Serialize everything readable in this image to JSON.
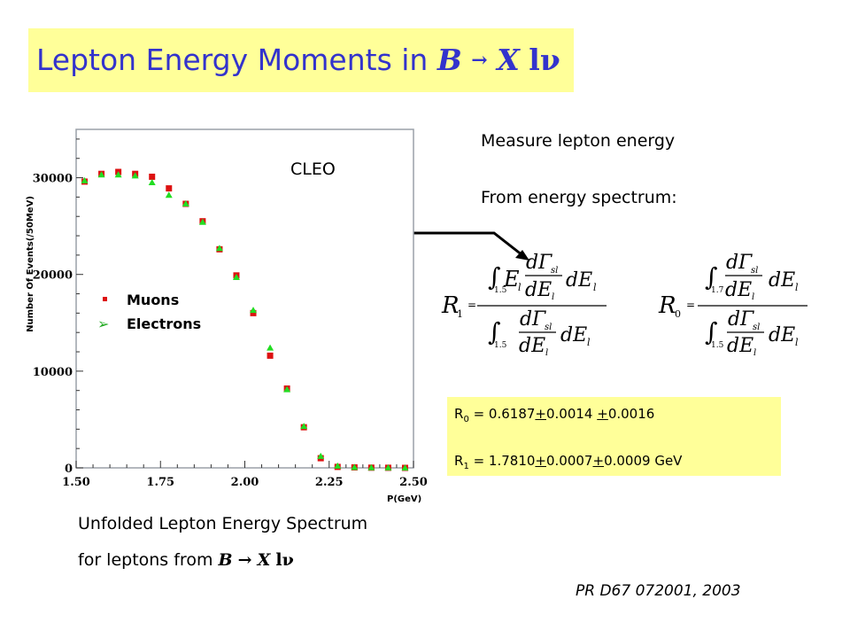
{
  "title": {
    "text": "Lepton Energy Moments in ",
    "B": "B",
    "arrow": "→",
    "X": "X",
    "l": "l",
    "nu": "ν"
  },
  "measure_line": "Measure lepton energy",
  "spectrum_line": "From energy spectrum:",
  "caption_line1": "Unfolded Lepton Energy Spectrum",
  "caption_line2": "for leptons from ",
  "results": {
    "r0_label": "R",
    "r0_sub": "0",
    "r0_eq": " = 0.6187",
    "r0_pm1": "+",
    "r0_v1": "0.0014 ",
    "r0_pm2": "+",
    "r0_v2": "0.0016",
    "r1_label": "R",
    "r1_sub": "1",
    "r1_eq": " = 1.7810",
    "r1_pm1": "+",
    "r1_v1": "0.0007",
    "r1_pm2": "+",
    "r1_v2": "0.0009 GeV"
  },
  "reference": "PR D67 072001, 2003",
  "formulas": {
    "r1": {
      "lhs": "R",
      "sub": "1",
      "eq": "=",
      "num_lim": "1.5",
      "den_lim": "1.5",
      "E": "E",
      "l": "l",
      "d": "d",
      "Gamma": "Γ",
      "sl": "sl",
      "dE": "dE"
    },
    "r0": {
      "lhs": "R",
      "sub": "0",
      "eq": "=",
      "num_lim": "1.7",
      "den_lim": "1.5",
      "d": "d",
      "Gamma": "Γ",
      "sl": "sl",
      "dE": "dE",
      "l": "l"
    }
  },
  "colors": {
    "title_bg": "#ffff99",
    "title_text": "#3333cc",
    "muon": "#dd1111",
    "electron": "#22dd22",
    "plot_border": "#9aa0a8"
  },
  "chart_data": {
    "type": "scatter",
    "annotation": "CLEO",
    "xlabel": "P(GeV)",
    "ylabel": "Number Of Events(/50MeV)",
    "xlim": [
      1.5,
      2.5
    ],
    "ylim": [
      0,
      35000
    ],
    "xticks": [
      "1.50",
      "1.75",
      "2.00",
      "2.25",
      "2.50"
    ],
    "yticks": [
      "0",
      "10000",
      "20000",
      "30000"
    ],
    "legend_position": "middle-left",
    "series": [
      {
        "name": "Muons",
        "marker": "square",
        "color": "#dd1111",
        "x": [
          1.525,
          1.575,
          1.625,
          1.675,
          1.725,
          1.775,
          1.825,
          1.875,
          1.925,
          1.975,
          2.025,
          2.075,
          2.125,
          2.175,
          2.225,
          2.275,
          2.325,
          2.375,
          2.425,
          2.475
        ],
        "y": [
          29600,
          30400,
          30600,
          30400,
          30100,
          28900,
          27300,
          25500,
          22600,
          19900,
          16000,
          11600,
          8200,
          4200,
          1000,
          100,
          50,
          20,
          10,
          0
        ]
      },
      {
        "name": "Electrons",
        "marker": "triangle",
        "color": "#22dd22",
        "x": [
          1.525,
          1.575,
          1.625,
          1.675,
          1.725,
          1.775,
          1.825,
          1.875,
          1.925,
          1.975,
          2.025,
          2.075,
          2.125,
          2.175,
          2.225,
          2.275,
          2.325,
          2.375,
          2.425,
          2.475
        ],
        "y": [
          29700,
          30300,
          30300,
          30200,
          29500,
          28200,
          27300,
          25400,
          22700,
          19700,
          16300,
          12400,
          8100,
          4300,
          1200,
          200,
          60,
          20,
          10,
          0
        ]
      }
    ]
  }
}
